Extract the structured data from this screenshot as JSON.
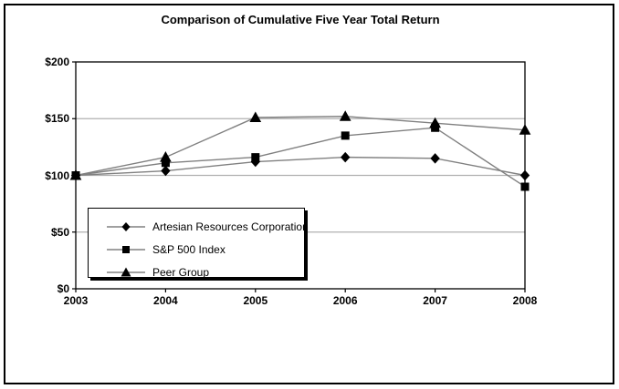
{
  "figure": {
    "title": "Comparison of Cumulative Five Year Total Return"
  },
  "chart_data": {
    "type": "line",
    "title": "Comparison of Cumulative Five Year Total Return",
    "categories": [
      "2003",
      "2004",
      "2005",
      "2006",
      "2007",
      "2008"
    ],
    "series": [
      {
        "name": "Artesian Resources Corporation",
        "marker": "diamond",
        "values": [
          100,
          104,
          112,
          116,
          115,
          100
        ]
      },
      {
        "name": "S&P 500 Index",
        "marker": "square",
        "values": [
          100,
          111,
          116,
          135,
          142,
          90
        ]
      },
      {
        "name": "Peer Group",
        "marker": "triangle",
        "values": [
          100,
          116,
          151,
          152,
          146,
          140
        ]
      }
    ],
    "xlabel": "",
    "ylabel": "",
    "ylim": [
      0,
      200
    ],
    "yticks": [
      0,
      50,
      100,
      150,
      200
    ],
    "ytick_labels": [
      "$0",
      "$50",
      "$100",
      "$150",
      "$200"
    ],
    "grid": "horizontal-only",
    "legend_position": "inside-lower-left",
    "colors": {
      "line": "#808080",
      "marker": "#000000",
      "gridline": "#b0b0b0",
      "axis": "#000000",
      "background": "#ffffff"
    }
  }
}
